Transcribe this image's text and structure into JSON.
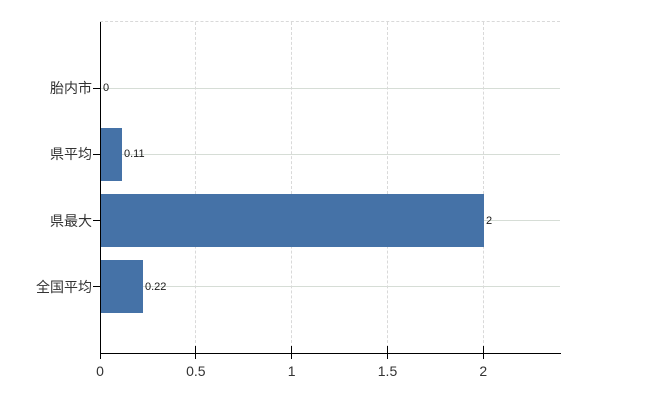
{
  "chart_data": {
    "type": "bar",
    "orientation": "horizontal",
    "title": "",
    "categories": [
      "胎内市",
      "県平均",
      "県最大",
      "全国平均"
    ],
    "values": [
      0,
      0.11,
      2,
      0.22
    ],
    "value_labels": [
      "0",
      "0.11",
      "2",
      "0.22"
    ],
    "x_axis": {
      "ticks": [
        0,
        0.5,
        1,
        1.5,
        2
      ],
      "tick_labels": [
        "0",
        "0.5",
        "1",
        "1.5",
        "2"
      ],
      "range": [
        0,
        2.4
      ]
    },
    "legend": null,
    "grid": {
      "vertical": "dashed",
      "horizontal": "solid"
    },
    "colors": {
      "bar": "#4572a7",
      "axis": "#000000",
      "grid_vertical": "#d9d9d9",
      "grid_horizontal": "#d6ddd6",
      "label": "#333333",
      "value_label": "#1a1a1a",
      "background": "#ffffff"
    }
  }
}
